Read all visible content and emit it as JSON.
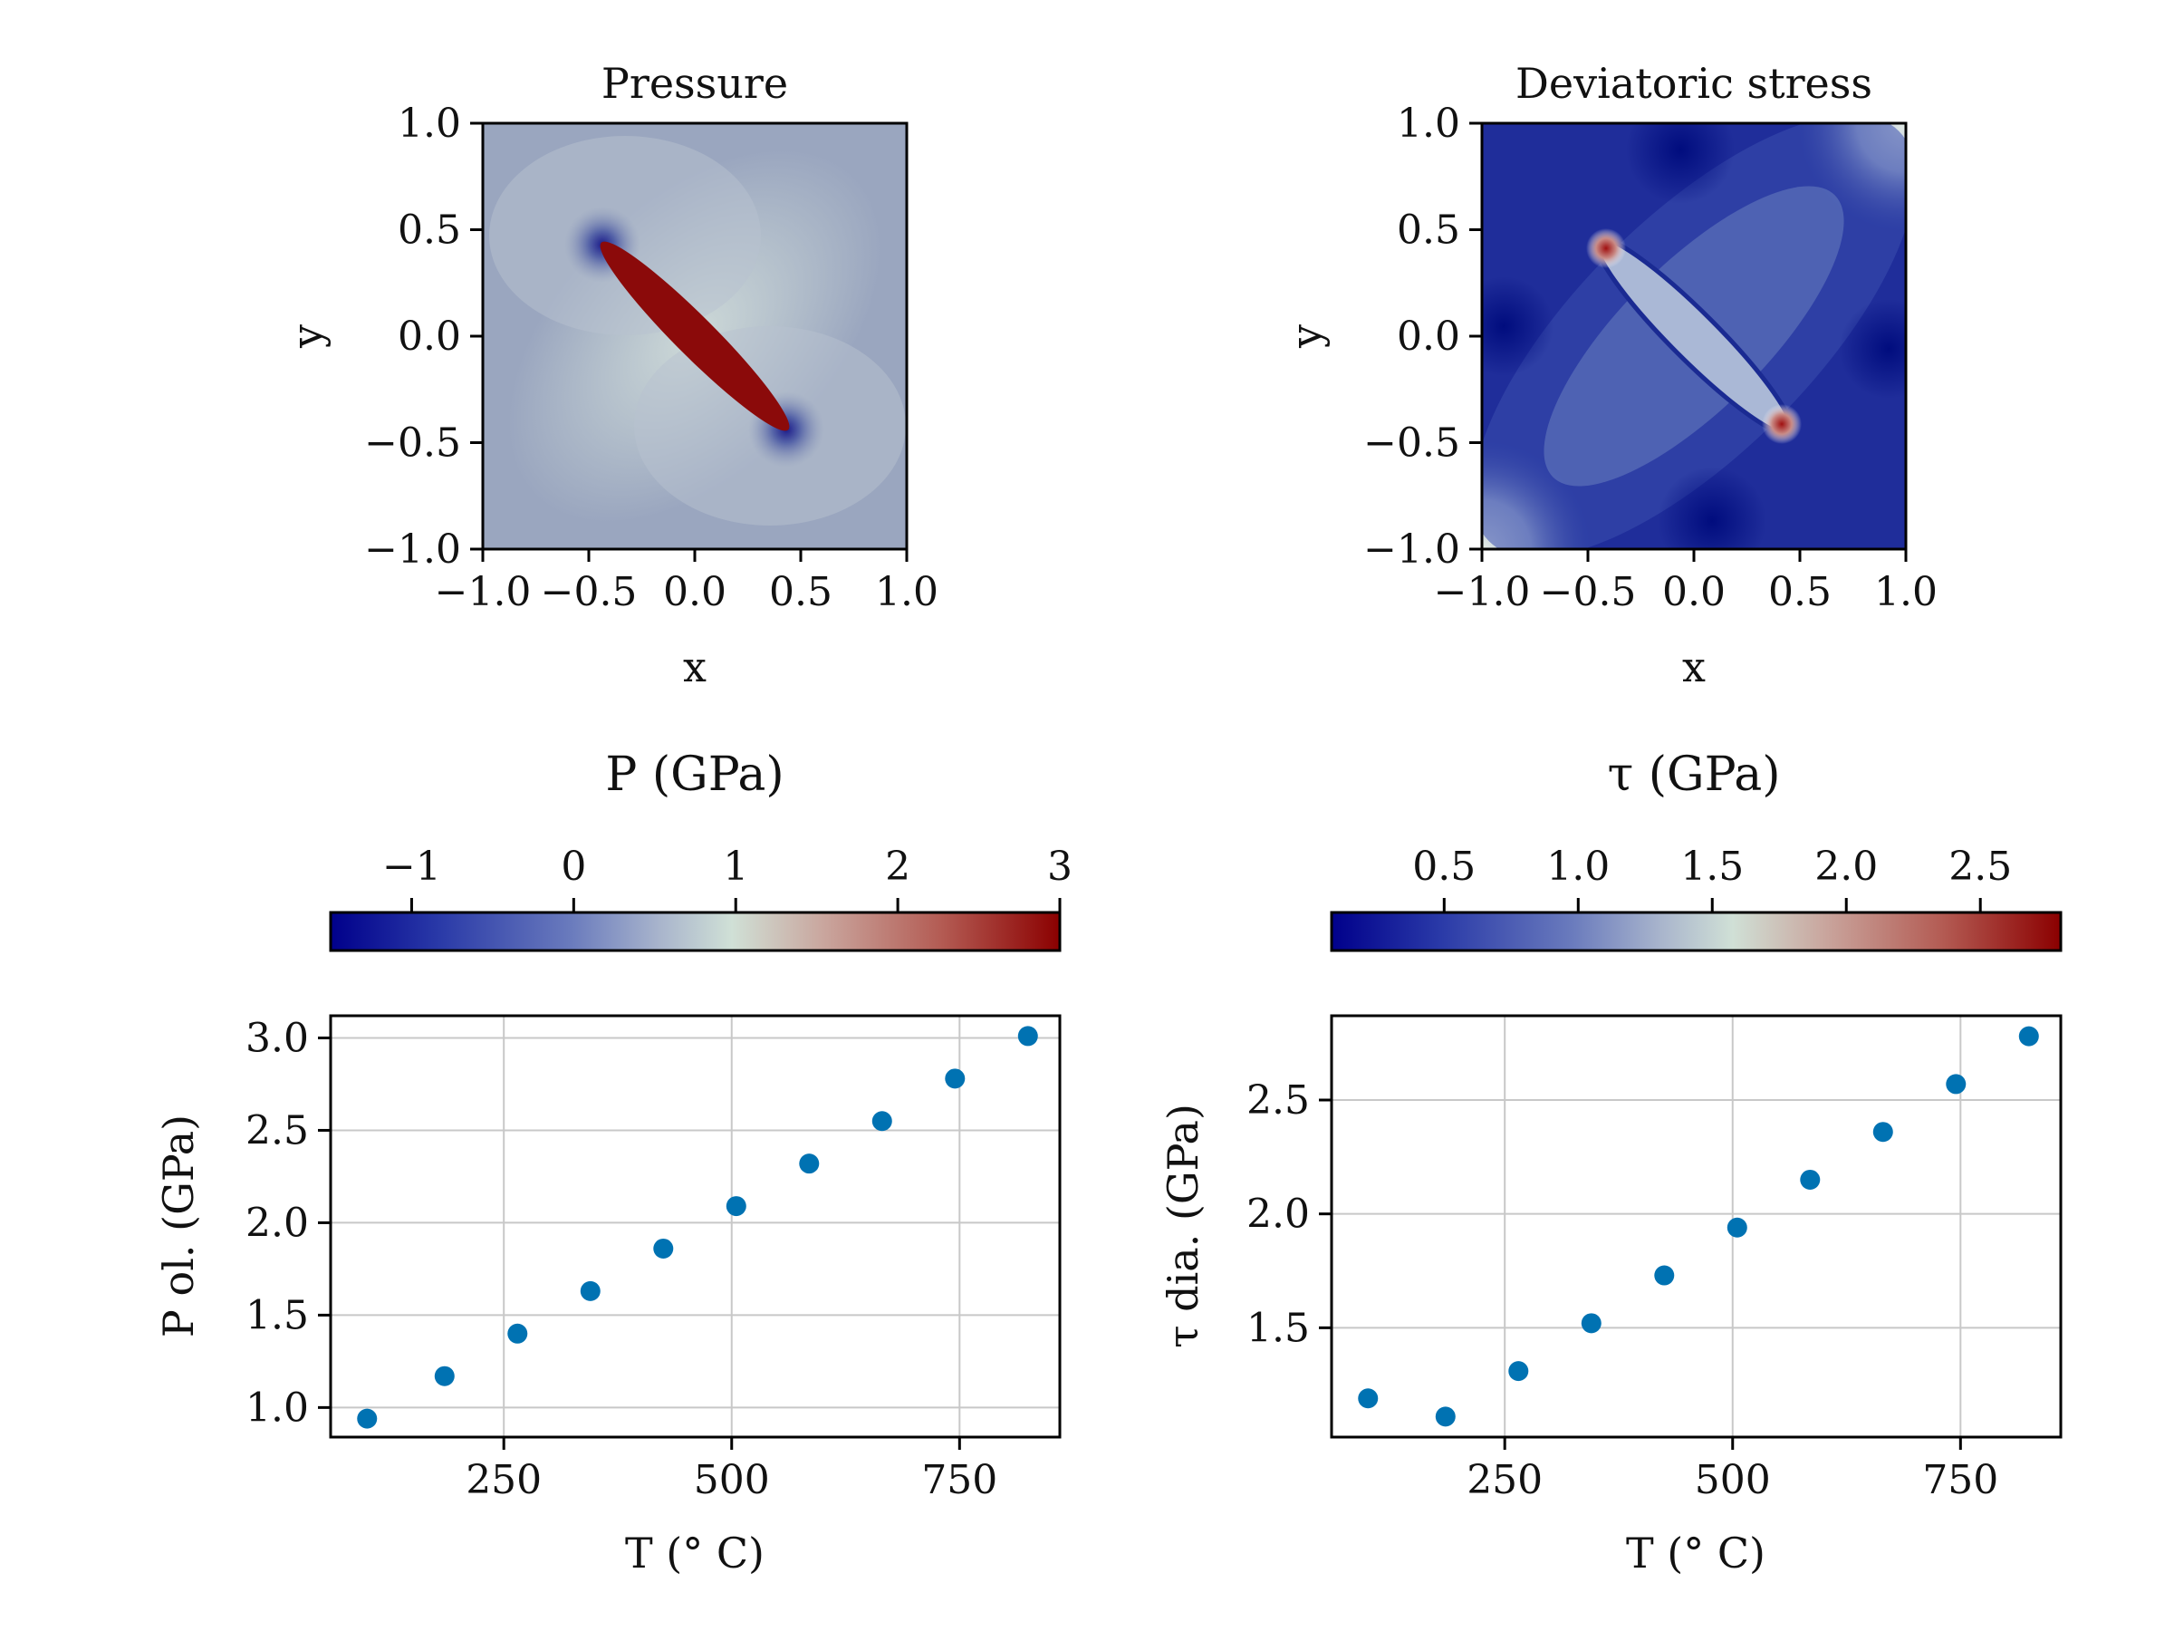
{
  "colors": {
    "marker": "#0072b2",
    "colormap": [
      "#00008b",
      "#2a3aa8",
      "#6a7bbd",
      "#a8b4cc",
      "#d0e0d6",
      "#c9a49c",
      "#b35a52",
      "#8b0000"
    ]
  },
  "chart_data": [
    {
      "type": "heatmap",
      "title": "Pressure",
      "xlabel": "x",
      "ylabel": "y",
      "xlim": [
        -1.0,
        1.0
      ],
      "ylim": [
        -1.0,
        1.0
      ],
      "xticks": [
        "−1.0",
        "−0.5",
        "0.0",
        "0.5",
        "1.0"
      ],
      "yticks": [
        "1.0",
        "0.5",
        "0.0",
        "−0.5",
        "−1.0"
      ],
      "colormap": "blue-white-red",
      "features": "elongated inclusion from (−0.42, 0.42) to (0.42, −0.42) at maximum pressure; low-pressure lobes at the inclusion tips"
    },
    {
      "type": "heatmap",
      "title": "Deviatoric stress",
      "xlabel": "x",
      "ylabel": "y",
      "xlim": [
        -1.0,
        1.0
      ],
      "ylim": [
        -1.0,
        1.0
      ],
      "xticks": [
        "−1.0",
        "−0.5",
        "0.0",
        "0.5",
        "1.0"
      ],
      "yticks": [
        "1.0",
        "0.5",
        "0.0",
        "−0.5",
        "−1.0"
      ],
      "colormap": "blue-white-red",
      "features": "stress concentrations (red) at inclusion tips (−0.42, 0.42) and (0.42, −0.42)"
    },
    {
      "type": "colorbar",
      "label": "P (GPa)",
      "range": [
        -1.5,
        3.0
      ],
      "ticks": [
        -1,
        0,
        1,
        2,
        3
      ],
      "tick_labels": [
        "−1",
        "0",
        "1",
        "2",
        "3"
      ]
    },
    {
      "type": "colorbar",
      "label": "τ (GPa)",
      "range": [
        0.08,
        2.8
      ],
      "ticks": [
        0.5,
        1.0,
        1.5,
        2.0,
        2.5
      ],
      "tick_labels": [
        "0.5",
        "1.0",
        "1.5",
        "2.0",
        "2.5"
      ]
    },
    {
      "type": "scatter",
      "xlabel": "T  (° C)",
      "ylabel": "P ol. (GPa)",
      "xlim": [
        60,
        860
      ],
      "ylim": [
        0.84,
        3.12
      ],
      "xticks": [
        250,
        500,
        750
      ],
      "yticks": [
        1.0,
        1.5,
        2.0,
        2.5,
        3.0
      ],
      "ytick_labels": [
        "1.0",
        "1.5",
        "2.0",
        "2.5",
        "3.0"
      ],
      "grid": true,
      "x": [
        100,
        185,
        265,
        345,
        425,
        505,
        585,
        665,
        745,
        825
      ],
      "y": [
        0.94,
        1.17,
        1.4,
        1.63,
        1.86,
        2.09,
        2.32,
        2.55,
        2.78,
        3.01
      ]
    },
    {
      "type": "scatter",
      "xlabel": "T (° C)",
      "ylabel": "τ dia. (GPa)",
      "xlim": [
        60,
        860
      ],
      "ylim": [
        1.02,
        2.87
      ],
      "xticks": [
        250,
        500,
        750
      ],
      "yticks": [
        1.5,
        2.0,
        2.5
      ],
      "ytick_labels": [
        "1.5",
        "2.0",
        "2.5"
      ],
      "grid": true,
      "x": [
        100,
        185,
        265,
        345,
        425,
        505,
        585,
        665,
        745,
        825
      ],
      "y": [
        1.19,
        1.11,
        1.31,
        1.52,
        1.73,
        1.94,
        2.15,
        2.36,
        2.57,
        2.78
      ]
    }
  ]
}
